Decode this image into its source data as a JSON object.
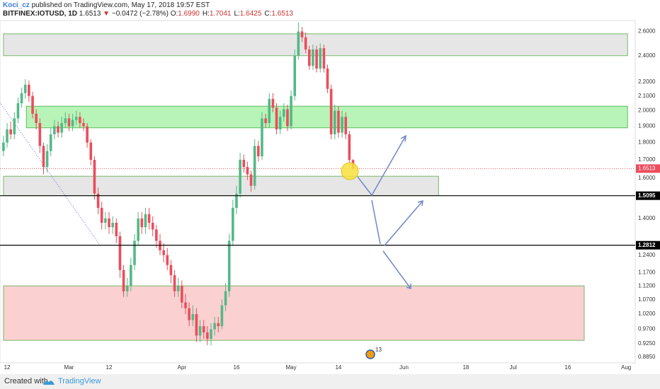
{
  "header": {
    "author": "Koci_cz",
    "published": "published on TradingView.com, May 17, 2018 19:57 EST",
    "symbol": "BITFINEX:IOTUSD, 1D",
    "last": "1.6513",
    "arrow": "▼",
    "change": "−0.0472 (−2.78%)",
    "ohlc": [
      {
        "label": "O:",
        "value": "1.6990"
      },
      {
        "label": "H:",
        "value": "1.7041"
      },
      {
        "label": "L:",
        "value": "1.6425"
      },
      {
        "label": "C:",
        "value": "1.6513"
      }
    ]
  },
  "footer": {
    "created": "Created with",
    "brand": "TradingView"
  },
  "chart_data": {
    "type": "candlestick",
    "log_scale": true,
    "grid": true,
    "up_color": "#53b987",
    "down_color": "#eb4d5c",
    "x": [
      -1,
      0,
      1,
      2,
      3,
      4,
      5,
      6,
      7,
      8,
      9,
      10,
      11,
      12,
      13,
      14,
      15,
      16,
      17,
      18,
      19,
      20,
      21,
      22,
      23,
      24,
      25,
      26,
      27,
      28,
      29,
      30,
      31,
      32,
      33,
      34,
      35,
      36,
      37,
      38,
      39,
      40,
      41,
      42,
      43,
      44,
      45,
      46,
      47,
      48,
      49,
      50,
      51,
      52,
      53,
      54,
      55,
      56,
      57,
      58,
      59,
      60,
      61,
      62,
      63,
      64,
      65,
      66,
      67,
      68,
      69,
      70,
      71,
      72,
      73,
      74,
      75,
      76,
      77,
      78,
      79,
      80,
      81,
      82,
      83,
      84,
      85,
      86,
      87,
      88,
      89,
      90,
      91,
      92,
      93,
      94,
      95
    ],
    "open": [
      1.75,
      1.8,
      1.88,
      1.85,
      1.95,
      2.05,
      2.12,
      2.18,
      2.1,
      1.98,
      1.92,
      1.78,
      1.66,
      1.75,
      1.85,
      1.9,
      1.86,
      1.92,
      1.95,
      1.9,
      1.94,
      1.96,
      1.92,
      1.9,
      1.8,
      1.7,
      1.52,
      1.45,
      1.38,
      1.4,
      1.36,
      1.38,
      1.32,
      1.18,
      1.1,
      1.12,
      1.2,
      1.3,
      1.4,
      1.36,
      1.42,
      1.38,
      1.35,
      1.3,
      1.26,
      1.24,
      1.2,
      1.16,
      1.1,
      1.12,
      1.06,
      1.04,
      1.0,
      1.02,
      0.95,
      0.98,
      0.96,
      0.94,
      0.97,
      0.99,
      0.98,
      1.05,
      1.1,
      1.3,
      1.45,
      1.52,
      1.7,
      1.66,
      1.62,
      1.56,
      1.78,
      1.72,
      1.95,
      1.92,
      2.08,
      2.02,
      1.88,
      1.96,
      2.01,
      1.9,
      2.1,
      2.4,
      2.6,
      2.55,
      2.45,
      2.32,
      2.45,
      2.3,
      2.46,
      2.3,
      2.15,
      1.85,
      2.0,
      1.86,
      1.96,
      1.85,
      1.699
    ],
    "high": [
      1.84,
      1.92,
      1.93,
      1.99,
      2.09,
      2.16,
      2.22,
      2.21,
      2.13,
      2.01,
      1.95,
      1.8,
      1.79,
      1.89,
      1.94,
      1.93,
      1.96,
      1.99,
      1.98,
      1.98,
      2.0,
      1.99,
      1.95,
      1.92,
      1.82,
      1.72,
      1.55,
      1.48,
      1.43,
      1.43,
      1.41,
      1.4,
      1.34,
      1.2,
      1.15,
      1.23,
      1.33,
      1.43,
      1.43,
      1.45,
      1.45,
      1.41,
      1.37,
      1.33,
      1.29,
      1.27,
      1.22,
      1.18,
      1.15,
      1.14,
      1.09,
      1.06,
      1.05,
      1.04,
      1.0,
      1.0,
      0.98,
      0.99,
      1.01,
      1.01,
      1.07,
      1.13,
      1.33,
      1.49,
      1.56,
      1.74,
      1.73,
      1.69,
      1.64,
      1.82,
      1.81,
      1.99,
      1.98,
      2.12,
      2.12,
      2.05,
      2.0,
      2.05,
      2.04,
      2.14,
      2.45,
      2.68,
      2.64,
      2.59,
      2.48,
      2.49,
      2.48,
      2.5,
      2.49,
      2.33,
      2.18,
      2.04,
      2.03,
      2.0,
      1.99,
      1.87,
      1.7041
    ],
    "low": [
      1.72,
      1.77,
      1.82,
      1.82,
      1.92,
      2.02,
      2.08,
      2.06,
      1.95,
      1.88,
      1.74,
      1.62,
      1.63,
      1.72,
      1.82,
      1.83,
      1.83,
      1.89,
      1.87,
      1.87,
      1.91,
      1.89,
      1.87,
      1.77,
      1.67,
      1.49,
      1.42,
      1.35,
      1.35,
      1.33,
      1.33,
      1.29,
      1.15,
      1.08,
      1.08,
      1.1,
      1.18,
      1.28,
      1.33,
      1.33,
      1.35,
      1.32,
      1.27,
      1.24,
      1.21,
      1.18,
      1.13,
      1.08,
      1.08,
      1.04,
      1.02,
      0.98,
      0.98,
      0.93,
      0.93,
      0.94,
      0.92,
      0.92,
      0.95,
      0.96,
      0.97,
      1.03,
      1.08,
      1.28,
      1.42,
      1.5,
      1.63,
      1.59,
      1.53,
      1.54,
      1.69,
      1.7,
      1.89,
      1.89,
      1.99,
      1.85,
      1.85,
      1.93,
      1.87,
      1.88,
      2.07,
      2.37,
      2.51,
      2.42,
      2.29,
      2.29,
      2.27,
      2.27,
      2.27,
      2.12,
      1.82,
      1.82,
      1.83,
      1.83,
      1.82,
      1.67,
      1.6425
    ],
    "close": [
      1.8,
      1.88,
      1.85,
      1.95,
      2.05,
      2.12,
      2.18,
      2.1,
      1.98,
      1.92,
      1.78,
      1.66,
      1.75,
      1.85,
      1.9,
      1.86,
      1.92,
      1.95,
      1.9,
      1.94,
      1.96,
      1.92,
      1.9,
      1.8,
      1.7,
      1.52,
      1.45,
      1.38,
      1.4,
      1.36,
      1.38,
      1.32,
      1.18,
      1.1,
      1.12,
      1.2,
      1.3,
      1.4,
      1.36,
      1.42,
      1.38,
      1.35,
      1.3,
      1.26,
      1.24,
      1.2,
      1.16,
      1.1,
      1.12,
      1.06,
      1.04,
      1.0,
      1.02,
      0.95,
      0.98,
      0.96,
      0.94,
      0.97,
      0.99,
      0.98,
      1.05,
      1.1,
      1.3,
      1.45,
      1.52,
      1.7,
      1.66,
      1.62,
      1.56,
      1.78,
      1.72,
      1.95,
      1.92,
      2.08,
      2.02,
      1.88,
      1.96,
      2.01,
      1.9,
      2.1,
      2.4,
      2.6,
      2.55,
      2.45,
      2.32,
      2.45,
      2.3,
      2.46,
      2.3,
      2.15,
      1.85,
      2.0,
      1.86,
      1.96,
      1.85,
      1.699,
      1.6513
    ],
    "xlim": [
      -1.95,
      172.5
    ],
    "xticks": [
      {
        "value": 0,
        "label": "12"
      },
      {
        "value": 17,
        "label": "Mar"
      },
      {
        "value": 28,
        "label": "12"
      },
      {
        "value": 48,
        "label": "Apr"
      },
      {
        "value": 63,
        "label": "16"
      },
      {
        "value": 78,
        "label": "May"
      },
      {
        "value": 91,
        "label": "14"
      },
      {
        "value": 109,
        "label": "Jun"
      },
      {
        "value": 126,
        "label": "18"
      },
      {
        "value": 139,
        "label": "Jul"
      },
      {
        "value": 154,
        "label": "16"
      },
      {
        "value": 170,
        "label": "Aug"
      }
    ],
    "ylim": [
      0.87,
      2.69
    ],
    "yticks": [
      {
        "value": 2.6,
        "label": "2.6000"
      },
      {
        "value": 2.4,
        "label": "2.4000"
      },
      {
        "value": 2.2,
        "label": "2.2000"
      },
      {
        "value": 2.1,
        "label": "2.1000"
      },
      {
        "value": 2.0,
        "label": "2.0000"
      },
      {
        "value": 1.9,
        "label": "1.9000"
      },
      {
        "value": 1.8,
        "label": "1.8000"
      },
      {
        "value": 1.7,
        "label": "1.7000"
      },
      {
        "value": 1.6,
        "label": "1.6000"
      },
      {
        "value": 1.4,
        "label": "1.4000"
      },
      {
        "value": 1.24,
        "label": "1.2400"
      },
      {
        "value": 1.17,
        "label": "1.1700"
      },
      {
        "value": 1.12,
        "label": "1.1200"
      },
      {
        "value": 1.07,
        "label": "1.0700"
      },
      {
        "value": 1.02,
        "label": "1.0200"
      },
      {
        "value": 0.97,
        "label": "0.9700"
      },
      {
        "value": 0.925,
        "label": "0.9250"
      },
      {
        "value": 0.885,
        "label": "0.8850"
      }
    ],
    "zones": [
      {
        "low": 2.4,
        "high": 2.58,
        "x": [
          -1,
          170.4
        ],
        "color": "#e0e0e0",
        "border": "#7ab86a"
      },
      {
        "low": 1.89,
        "high": 2.03,
        "x": [
          5.3,
          170.4
        ],
        "color": "#a6f0a6",
        "border": "#5cbf5c"
      },
      {
        "low": 1.51,
        "high": 1.61,
        "x": [
          -1,
          118.5
        ],
        "color": "#e0e0e0",
        "border": "#7ab86a"
      },
      {
        "low": 0.935,
        "high": 1.12,
        "x": [
          -1,
          158.5
        ],
        "color": "#f9c4c4",
        "border": "#7ab86a"
      }
    ],
    "levels": [
      1.5095,
      1.2812
    ],
    "price_line": {
      "value": 1.6513,
      "color": "#eb4d5c"
    },
    "annotations": [
      "13"
    ]
  }
}
